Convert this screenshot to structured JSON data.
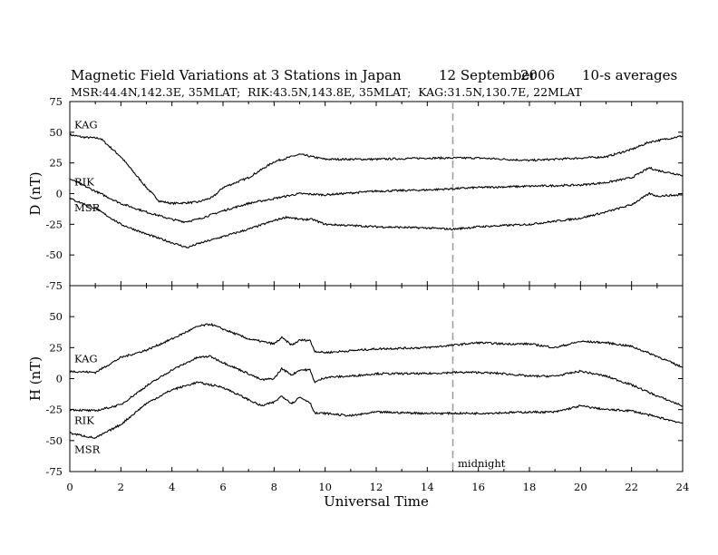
{
  "chart_data": {
    "type": "line",
    "title": "Magnetic Field Variations at 3 Stations in Japan",
    "date": "12 September",
    "year": "2006",
    "averaging": "10-s averages",
    "subtitle": "MSR:44.4N,142.3E, 35MLAT;  RIK:43.5N,143.8E, 35MLAT;  KAG:31.5N,130.7E, 22MLAT",
    "xlabel": "Universal Time",
    "xlim": [
      0,
      24
    ],
    "xticks": [
      0,
      2,
      4,
      6,
      8,
      10,
      12,
      14,
      16,
      18,
      20,
      22,
      24
    ],
    "annotation": {
      "text": "midnight",
      "x": 15
    },
    "panels": [
      {
        "ylabel": "D (nT)",
        "ylim": [
          -75,
          75
        ],
        "yticks": [
          75,
          50,
          25,
          0,
          -25,
          -50,
          -75
        ],
        "series": [
          {
            "name": "KAG",
            "x": [
              0,
              0.5,
              1.2,
              2,
              3,
              3.5,
              4,
              5,
              5.6,
              6,
              7,
              8,
              9,
              10,
              12,
              14,
              16,
              18,
              20,
              21,
              22,
              22.7,
              24
            ],
            "y": [
              48,
              46,
              45,
              30,
              5,
              -6,
              -8,
              -7,
              -3,
              5,
              13,
              26,
              32,
              28,
              28,
              29,
              29,
              27,
              29,
              30,
              36,
              42,
              47
            ]
          },
          {
            "name": "RIK",
            "x": [
              0,
              1,
              2,
              3,
              4,
              4.5,
              5,
              6,
              7,
              8,
              9,
              10,
              12,
              14,
              16,
              18,
              20,
              21,
              22,
              22.7,
              23,
              24
            ],
            "y": [
              12,
              2,
              -8,
              -15,
              -21,
              -23,
              -21,
              -14,
              -8,
              -4,
              0,
              -1,
              2,
              3,
              5,
              6,
              7,
              9,
              13,
              21,
              19,
              15
            ]
          },
          {
            "name": "MSR",
            "x": [
              0,
              1,
              2,
              3,
              4,
              4.6,
              5,
              6,
              7,
              8,
              8.5,
              9,
              9.5,
              10,
              12,
              14,
              15,
              16,
              18,
              20,
              21,
              22,
              22.7,
              23,
              24
            ],
            "y": [
              -4,
              -12,
              -25,
              -33,
              -40,
              -44,
              -41,
              -35,
              -29,
              -22,
              -19,
              -21,
              -21,
              -25,
              -27,
              -28,
              -29,
              -27,
              -25,
              -20,
              -15,
              -9,
              0,
              -2,
              -1
            ]
          }
        ]
      },
      {
        "ylabel": "H (nT)",
        "ylim": [
          -75,
          75
        ],
        "yticks": [
          75,
          50,
          25,
          0,
          -25,
          -50,
          -75
        ],
        "series": [
          {
            "name": "KAG",
            "x": [
              0,
              1,
              2,
              3,
              4,
              5,
              5.5,
              6,
              7,
              8,
              8.3,
              8.7,
              9,
              9.4,
              9.6,
              10,
              12,
              14,
              15,
              16,
              17,
              18,
              19,
              20,
              21,
              22,
              23,
              24
            ],
            "y": [
              6,
              5,
              17,
              23,
              32,
              42,
              44,
              40,
              32,
              28,
              33,
              27,
              31,
              31,
              22,
              21,
              24,
              25,
              27,
              29,
              28,
              28,
              25,
              30,
              29,
              26,
              18,
              9
            ]
          },
          {
            "name": "RIK",
            "x": [
              0,
              1,
              2,
              3,
              4,
              5,
              5.5,
              6,
              7,
              7.5,
              8,
              8.3,
              8.7,
              9,
              9.4,
              9.6,
              10,
              11,
              12,
              14,
              15,
              16,
              17,
              18,
              19,
              20,
              21,
              22,
              23,
              24
            ],
            "y": [
              -25,
              -26,
              -21,
              -6,
              7,
              17,
              18,
              13,
              4,
              -1,
              0,
              8,
              3,
              7,
              7,
              -3,
              1,
              2,
              4,
              4,
              5,
              5,
              4,
              2,
              2,
              6,
              2,
              -5,
              -14,
              -22
            ]
          },
          {
            "name": "MSR",
            "x": [
              0,
              1,
              2,
              3,
              4,
              5,
              6,
              7,
              7.5,
              8,
              8.3,
              8.7,
              9,
              9.4,
              9.6,
              10,
              11,
              12,
              14,
              16,
              18,
              19,
              20,
              21,
              22,
              23,
              24
            ],
            "y": [
              -44,
              -48,
              -37,
              -20,
              -9,
              -3,
              -7,
              -17,
              -22,
              -19,
              -14,
              -20,
              -15,
              -19,
              -28,
              -28,
              -30,
              -27,
              -28,
              -28,
              -27,
              -27,
              -22,
              -25,
              -26,
              -31,
              -36
            ]
          }
        ]
      }
    ]
  }
}
